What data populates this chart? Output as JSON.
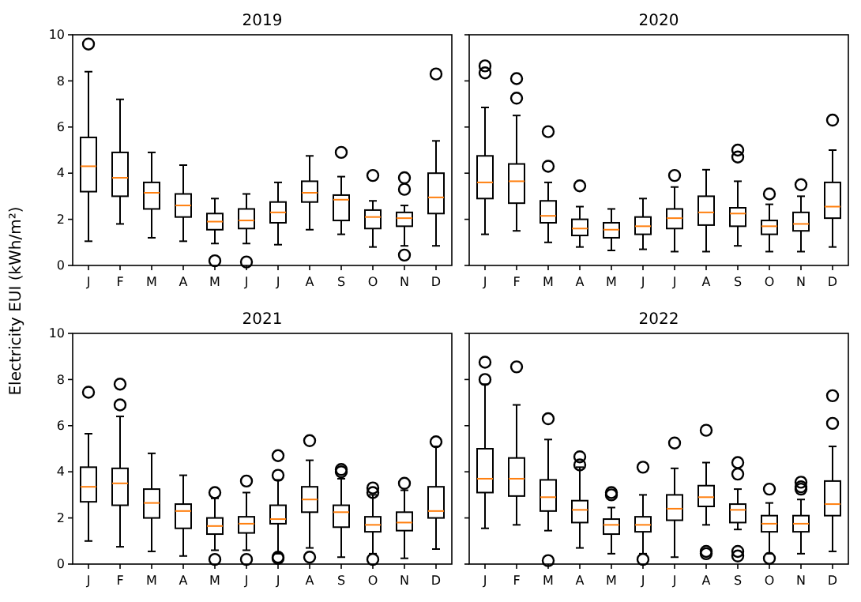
{
  "chart_data": [
    {
      "type": "box",
      "title": "2019",
      "ylabel": "Electricity EUI (kWh/m²)",
      "categories": [
        "J",
        "F",
        "M",
        "A",
        "M",
        "J",
        "J",
        "A",
        "S",
        "O",
        "N",
        "D"
      ],
      "ylim": [
        0,
        10
      ],
      "yticks": [
        0,
        2,
        4,
        6,
        8,
        10
      ],
      "boxes": [
        {
          "low": 1.05,
          "q1": 3.2,
          "median": 4.3,
          "q3": 5.55,
          "high": 8.4,
          "outliers": [
            9.6
          ]
        },
        {
          "low": 1.8,
          "q1": 3.0,
          "median": 3.8,
          "q3": 4.9,
          "high": 7.2
        },
        {
          "low": 1.2,
          "q1": 2.45,
          "median": 3.15,
          "q3": 3.6,
          "high": 4.9
        },
        {
          "low": 1.05,
          "q1": 2.1,
          "median": 2.6,
          "q3": 3.1,
          "high": 4.35
        },
        {
          "low": 0.95,
          "q1": 1.55,
          "median": 1.9,
          "q3": 2.25,
          "high": 2.9,
          "outliers": [
            0.2
          ]
        },
        {
          "low": 0.95,
          "q1": 1.6,
          "median": 1.95,
          "q3": 2.45,
          "high": 3.1,
          "outliers": [
            0.15
          ]
        },
        {
          "low": 0.9,
          "q1": 1.85,
          "median": 2.3,
          "q3": 2.75,
          "high": 3.6
        },
        {
          "low": 1.55,
          "q1": 2.75,
          "median": 3.15,
          "q3": 3.65,
          "high": 4.75
        },
        {
          "low": 1.35,
          "q1": 1.95,
          "median": 2.85,
          "q3": 3.05,
          "high": 3.85,
          "outliers": [
            4.9
          ]
        },
        {
          "low": 0.8,
          "q1": 1.6,
          "median": 2.1,
          "q3": 2.4,
          "high": 2.8,
          "outliers": [
            3.9
          ]
        },
        {
          "low": 0.85,
          "q1": 1.7,
          "median": 2.05,
          "q3": 2.3,
          "high": 2.6,
          "outliers": [
            3.8,
            3.3,
            0.45
          ]
        },
        {
          "low": 0.85,
          "q1": 2.25,
          "median": 2.95,
          "q3": 4.0,
          "high": 5.4,
          "outliers": [
            8.3
          ]
        }
      ]
    },
    {
      "type": "box",
      "title": "2020",
      "tick_labels": "x",
      "categories": [
        "J",
        "F",
        "M",
        "A",
        "M",
        "J",
        "J",
        "A",
        "S",
        "O",
        "N",
        "D"
      ],
      "ylim": [
        0,
        10
      ],
      "yticks": [
        {
          "value": 0,
          "label": null
        },
        {
          "value": 2,
          "label": null
        },
        {
          "value": 4,
          "label": null
        },
        {
          "value": 6,
          "label": null
        },
        {
          "value": 8,
          "label": null
        },
        {
          "value": 10,
          "label": null
        }
      ],
      "boxes": [
        {
          "low": 1.35,
          "q1": 2.9,
          "median": 3.6,
          "q3": 4.75,
          "high": 6.85,
          "outliers": [
            8.35,
            8.65
          ]
        },
        {
          "low": 1.5,
          "q1": 2.7,
          "median": 3.65,
          "q3": 4.4,
          "high": 6.5,
          "outliers": [
            7.25,
            8.1
          ]
        },
        {
          "low": 1.0,
          "q1": 1.85,
          "median": 2.15,
          "q3": 2.8,
          "high": 3.6,
          "outliers": [
            4.3,
            5.8
          ]
        },
        {
          "low": 0.8,
          "q1": 1.3,
          "median": 1.6,
          "q3": 2.0,
          "high": 2.55,
          "outliers": [
            3.45
          ]
        },
        {
          "low": 0.65,
          "q1": 1.2,
          "median": 1.55,
          "q3": 1.85,
          "high": 2.45
        },
        {
          "low": 0.7,
          "q1": 1.35,
          "median": 1.7,
          "q3": 2.1,
          "high": 2.9
        },
        {
          "low": 0.6,
          "q1": 1.6,
          "median": 2.05,
          "q3": 2.45,
          "high": 3.4,
          "outliers": [
            3.9
          ]
        },
        {
          "low": 0.6,
          "q1": 1.75,
          "median": 2.3,
          "q3": 3.0,
          "high": 4.15
        },
        {
          "low": 0.85,
          "q1": 1.7,
          "median": 2.25,
          "q3": 2.5,
          "high": 3.65,
          "outliers": [
            4.7,
            5.0
          ]
        },
        {
          "low": 0.6,
          "q1": 1.35,
          "median": 1.7,
          "q3": 1.95,
          "high": 2.65,
          "outliers": [
            3.1
          ]
        },
        {
          "low": 0.6,
          "q1": 1.5,
          "median": 1.8,
          "q3": 2.3,
          "high": 3.0,
          "outliers": [
            3.5
          ]
        },
        {
          "low": 0.8,
          "q1": 2.05,
          "median": 2.55,
          "q3": 3.6,
          "high": 5.0,
          "outliers": [
            6.3
          ]
        }
      ]
    },
    {
      "type": "box",
      "title": "2021",
      "categories": [
        "J",
        "F",
        "M",
        "A",
        "M",
        "J",
        "J",
        "A",
        "S",
        "O",
        "N",
        "D"
      ],
      "ylim": [
        0,
        10
      ],
      "yticks": [
        0,
        2,
        4,
        6,
        8,
        10
      ],
      "boxes": [
        {
          "low": 1.0,
          "q1": 2.7,
          "median": 3.35,
          "q3": 4.2,
          "high": 5.65,
          "outliers": [
            7.45
          ]
        },
        {
          "low": 0.75,
          "q1": 2.55,
          "median": 3.5,
          "q3": 4.15,
          "high": 6.4,
          "outliers": [
            6.9,
            7.8
          ]
        },
        {
          "low": 0.55,
          "q1": 2.0,
          "median": 2.65,
          "q3": 3.25,
          "high": 4.8
        },
        {
          "low": 0.35,
          "q1": 1.55,
          "median": 2.3,
          "q3": 2.6,
          "high": 3.85
        },
        {
          "low": 0.6,
          "q1": 1.3,
          "median": 1.65,
          "q3": 2.0,
          "high": 2.85,
          "outliers": [
            3.1,
            0.2
          ]
        },
        {
          "low": 0.6,
          "q1": 1.35,
          "median": 1.75,
          "q3": 2.05,
          "high": 3.1,
          "outliers": [
            3.6,
            0.2
          ]
        },
        {
          "low": 0.45,
          "q1": 1.75,
          "median": 1.95,
          "q3": 2.55,
          "high": 3.65,
          "outliers": [
            3.85,
            4.7,
            0.25,
            0.3
          ]
        },
        {
          "low": 0.7,
          "q1": 2.25,
          "median": 2.8,
          "q3": 3.35,
          "high": 4.5,
          "outliers": [
            5.35,
            0.3
          ]
        },
        {
          "low": 0.3,
          "q1": 1.6,
          "median": 2.25,
          "q3": 2.55,
          "high": 3.7,
          "outliers": [
            4.0,
            4.1
          ]
        },
        {
          "low": 0.45,
          "q1": 1.4,
          "median": 1.7,
          "q3": 2.05,
          "high": 3.0,
          "outliers": [
            3.1,
            3.3,
            0.2
          ]
        },
        {
          "low": 0.25,
          "q1": 1.45,
          "median": 1.8,
          "q3": 2.25,
          "high": 3.2,
          "outliers": [
            3.5
          ]
        },
        {
          "low": 0.65,
          "q1": 2.0,
          "median": 2.3,
          "q3": 3.35,
          "high": 5.1,
          "outliers": [
            5.3
          ]
        }
      ]
    },
    {
      "type": "box",
      "title": "2022",
      "tick_labels": "x",
      "categories": [
        "J",
        "F",
        "M",
        "A",
        "M",
        "J",
        "J",
        "A",
        "S",
        "O",
        "N",
        "D"
      ],
      "ylim": [
        0,
        10
      ],
      "yticks": [
        {
          "value": 0,
          "label": null
        },
        {
          "value": 2,
          "label": null
        },
        {
          "value": 4,
          "label": null
        },
        {
          "value": 6,
          "label": null
        },
        {
          "value": 8,
          "label": null
        },
        {
          "value": 10,
          "label": null
        }
      ],
      "boxes": [
        {
          "low": 1.55,
          "q1": 3.1,
          "median": 3.7,
          "q3": 5.0,
          "high": 7.8,
          "outliers": [
            8.0,
            8.75
          ]
        },
        {
          "low": 1.7,
          "q1": 2.95,
          "median": 3.7,
          "q3": 4.6,
          "high": 6.9,
          "outliers": [
            8.55
          ]
        },
        {
          "low": 1.45,
          "q1": 2.3,
          "median": 2.9,
          "q3": 3.65,
          "high": 5.4,
          "outliers": [
            6.3,
            0.15
          ]
        },
        {
          "low": 0.7,
          "q1": 1.8,
          "median": 2.35,
          "q3": 2.75,
          "high": 4.2,
          "outliers": [
            4.3,
            4.65
          ]
        },
        {
          "low": 0.45,
          "q1": 1.3,
          "median": 1.7,
          "q3": 1.95,
          "high": 2.45,
          "outliers": [
            3.0,
            3.1
          ]
        },
        {
          "low": 0.45,
          "q1": 1.4,
          "median": 1.7,
          "q3": 2.05,
          "high": 3.0,
          "outliers": [
            4.2,
            0.2
          ]
        },
        {
          "low": 0.3,
          "q1": 1.9,
          "median": 2.4,
          "q3": 3.0,
          "high": 4.15,
          "outliers": [
            5.25
          ]
        },
        {
          "low": 1.7,
          "q1": 2.5,
          "median": 2.9,
          "q3": 3.4,
          "high": 4.4,
          "outliers": [
            5.8,
            0.55,
            0.45
          ]
        },
        {
          "low": 1.5,
          "q1": 1.8,
          "median": 2.35,
          "q3": 2.6,
          "high": 3.25,
          "outliers": [
            4.4,
            3.9,
            0.55,
            0.35
          ]
        },
        {
          "low": 0.45,
          "q1": 1.4,
          "median": 1.75,
          "q3": 2.1,
          "high": 2.65,
          "outliers": [
            3.25,
            0.25
          ]
        },
        {
          "low": 0.45,
          "q1": 1.4,
          "median": 1.75,
          "q3": 2.1,
          "high": 2.8,
          "outliers": [
            3.35,
            3.55,
            3.25
          ]
        },
        {
          "low": 0.55,
          "q1": 2.1,
          "median": 2.6,
          "q3": 3.6,
          "high": 5.1,
          "outliers": [
            6.1,
            7.3
          ]
        }
      ]
    }
  ]
}
